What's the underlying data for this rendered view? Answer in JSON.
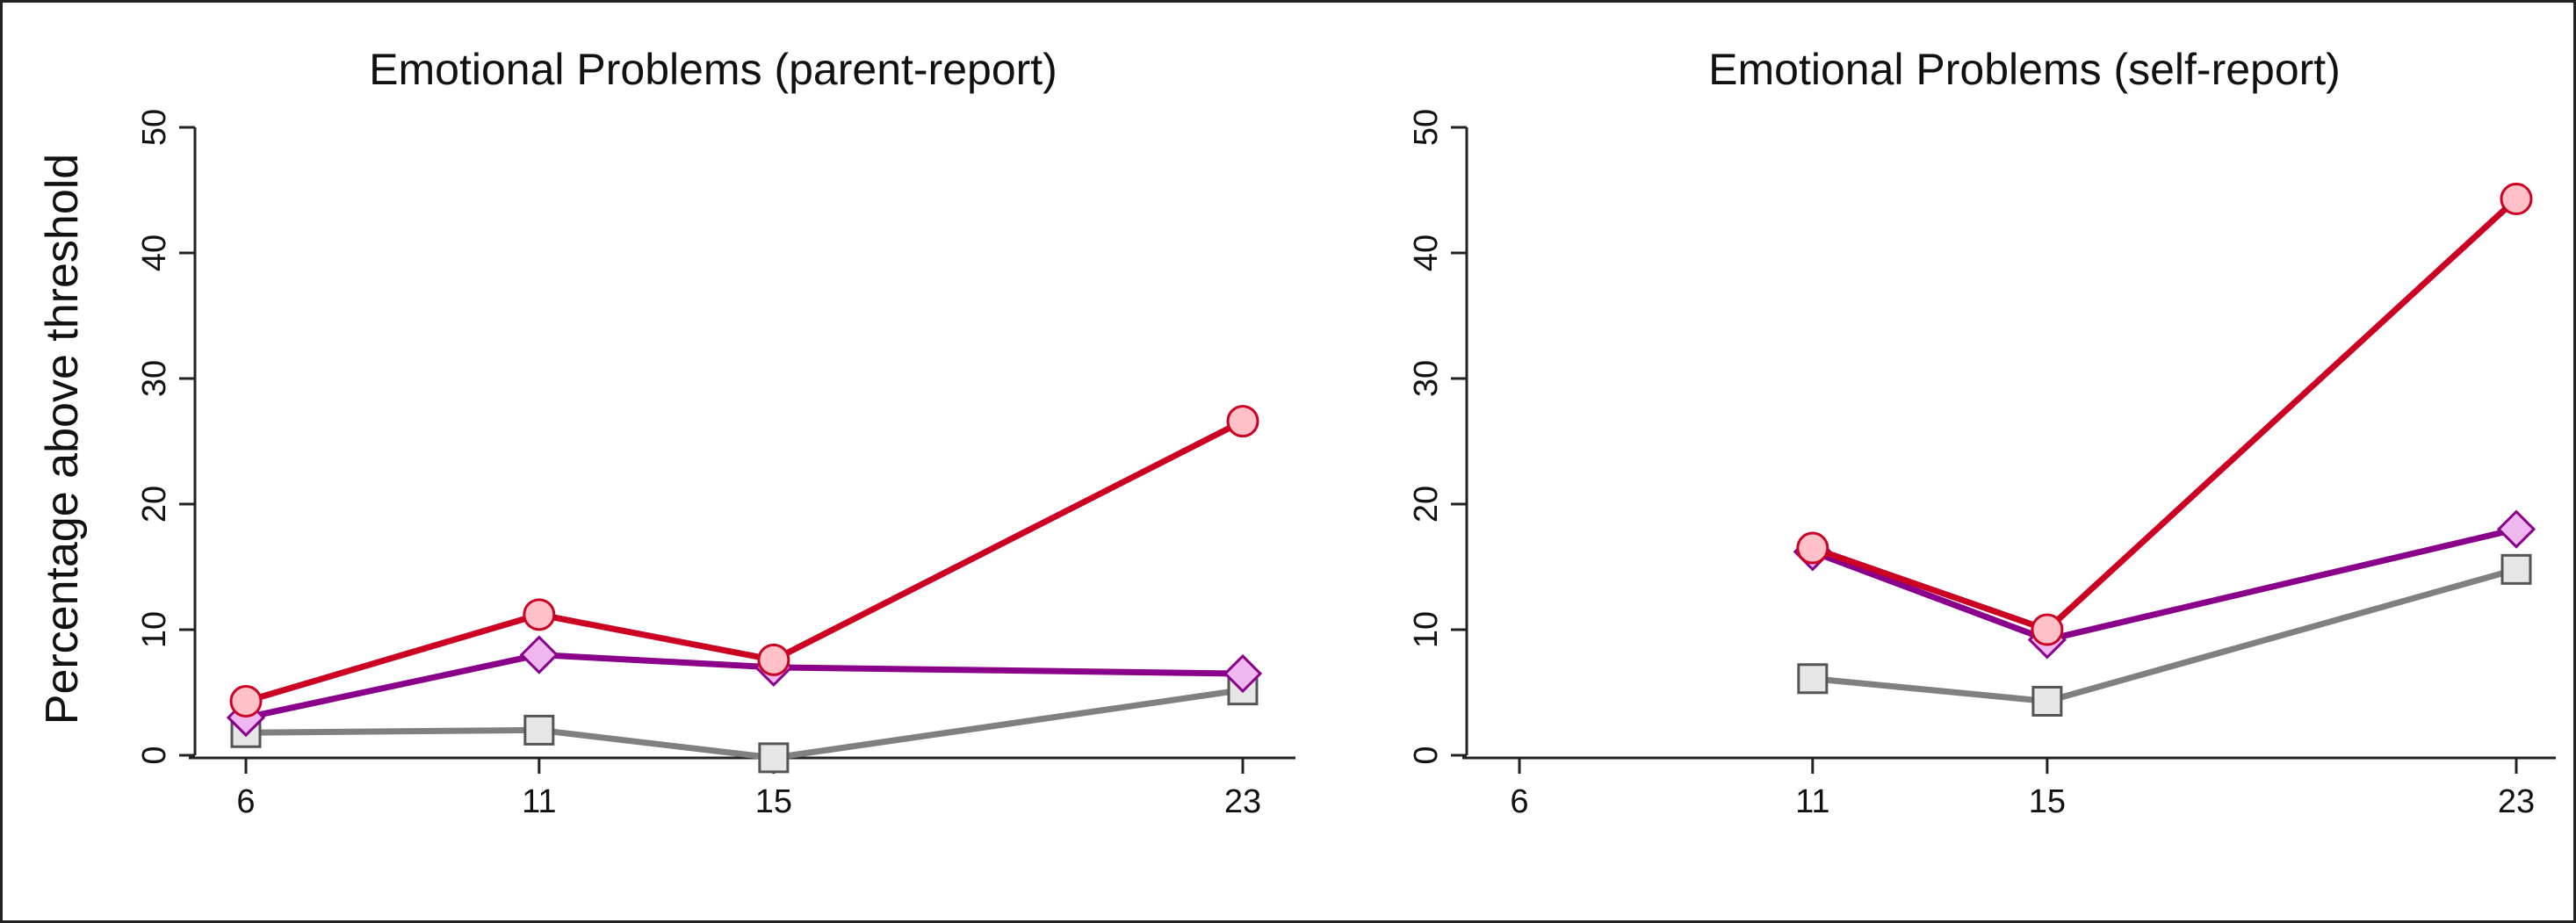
{
  "chart_data": [
    {
      "type": "line",
      "title": "Emotional Problems (parent-report)",
      "xlabel": "",
      "ylabel": "Percentage above threshold",
      "x": [
        6,
        11,
        15,
        23
      ],
      "xticks": [
        "6",
        "11",
        "15",
        "23"
      ],
      "xlim": [
        6,
        23
      ],
      "ylim": [
        0,
        50
      ],
      "yticks": [
        "0",
        "10",
        "20",
        "30",
        "40",
        "50"
      ],
      "grid": false,
      "series": [
        {
          "color": "#808080",
          "fill": "#e6e6e6",
          "marker": "square",
          "values": [
            1.8,
            2.0,
            -0.2,
            5.2
          ]
        },
        {
          "color": "#8b008b",
          "fill": "#f0b8f0",
          "marker": "diamond",
          "values": [
            3.0,
            8.0,
            7.0,
            6.5
          ]
        },
        {
          "color": "#cc0022",
          "fill": "#ffc0c8",
          "marker": "circle",
          "values": [
            4.3,
            11.2,
            7.6,
            26.6
          ]
        }
      ]
    },
    {
      "type": "line",
      "title": "Emotional Problems (self-report)",
      "xlabel": "",
      "ylabel": "",
      "x": [
        6,
        11,
        15,
        23
      ],
      "xticks": [
        "6",
        "11",
        "15",
        "23"
      ],
      "xlim": [
        6,
        23
      ],
      "ylim": [
        0,
        50
      ],
      "yticks": [
        "0",
        "10",
        "20",
        "30",
        "40",
        "50"
      ],
      "grid": false,
      "series": [
        {
          "color": "#808080",
          "fill": "#e6e6e6",
          "marker": "square",
          "values": [
            null,
            6.1,
            4.3,
            14.8
          ]
        },
        {
          "color": "#8b008b",
          "fill": "#f0b8f0",
          "marker": "diamond",
          "values": [
            null,
            16.2,
            9.2,
            18.0
          ]
        },
        {
          "color": "#cc0022",
          "fill": "#ffc0c8",
          "marker": "circle",
          "values": [
            null,
            16.5,
            10.0,
            44.3
          ]
        }
      ]
    }
  ]
}
